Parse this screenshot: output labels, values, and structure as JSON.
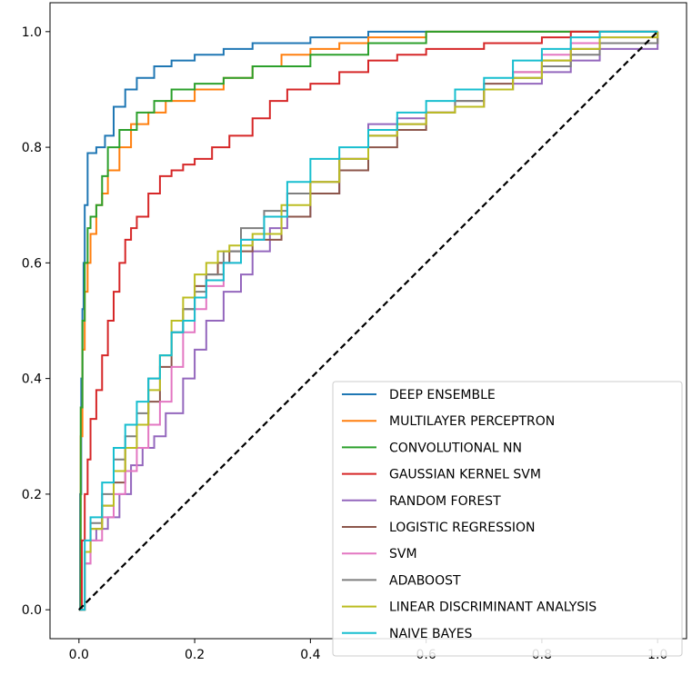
{
  "chart_data": {
    "type": "line",
    "title": "",
    "xlabel": "",
    "ylabel": "",
    "xlim": [
      -0.05,
      1.05
    ],
    "ylim": [
      -0.05,
      1.05
    ],
    "x_ticks": [
      "0.0",
      "0.2",
      "0.4",
      "0.6",
      "0.8",
      "1.0"
    ],
    "y_ticks": [
      "0.0",
      "0.2",
      "0.4",
      "0.6",
      "0.8",
      "1.0"
    ],
    "grid": false,
    "legend_position": "lower-right",
    "diagonal": {
      "x": [
        0,
        1
      ],
      "y": [
        0,
        1
      ],
      "color": "#000000",
      "style": "dashed"
    },
    "series": [
      {
        "name": "DEEP ENSEMBLE",
        "color": "#1f77b4",
        "x": [
          0,
          0.002,
          0.004,
          0.006,
          0.008,
          0.01,
          0.015,
          0.02,
          0.03,
          0.045,
          0.06,
          0.08,
          0.1,
          0.13,
          0.16,
          0.2,
          0.25,
          0.3,
          0.4,
          0.5,
          0.6,
          0.8,
          1.0
        ],
        "y": [
          0,
          0.2,
          0.4,
          0.52,
          0.6,
          0.7,
          0.79,
          0.79,
          0.8,
          0.82,
          0.87,
          0.9,
          0.92,
          0.94,
          0.95,
          0.96,
          0.97,
          0.98,
          0.99,
          1.0,
          1.0,
          1.0,
          1.0
        ]
      },
      {
        "name": "MULTILAYER PERCEPTRON",
        "color": "#ff7f0e",
        "x": [
          0,
          0.003,
          0.006,
          0.01,
          0.015,
          0.02,
          0.03,
          0.04,
          0.05,
          0.07,
          0.09,
          0.12,
          0.15,
          0.2,
          0.25,
          0.3,
          0.35,
          0.4,
          0.45,
          0.5,
          0.6,
          0.7,
          1.0
        ],
        "y": [
          0,
          0.3,
          0.45,
          0.55,
          0.6,
          0.65,
          0.7,
          0.72,
          0.76,
          0.8,
          0.84,
          0.86,
          0.88,
          0.9,
          0.92,
          0.94,
          0.96,
          0.97,
          0.98,
          0.99,
          1.0,
          1.0,
          1.0
        ]
      },
      {
        "name": "CONVOLUTIONAL NN",
        "color": "#2ca02c",
        "x": [
          0,
          0.003,
          0.006,
          0.01,
          0.015,
          0.02,
          0.03,
          0.04,
          0.05,
          0.07,
          0.1,
          0.13,
          0.16,
          0.2,
          0.25,
          0.3,
          0.4,
          0.5,
          0.6,
          0.7,
          0.8,
          1.0
        ],
        "y": [
          0,
          0.35,
          0.5,
          0.6,
          0.66,
          0.68,
          0.7,
          0.75,
          0.8,
          0.83,
          0.86,
          0.88,
          0.9,
          0.91,
          0.92,
          0.94,
          0.96,
          0.98,
          1.0,
          1.0,
          1.0,
          1.0
        ]
      },
      {
        "name": "GAUSSIAN KERNEL SVM",
        "color": "#d62728",
        "x": [
          0,
          0.005,
          0.01,
          0.015,
          0.02,
          0.03,
          0.04,
          0.05,
          0.06,
          0.07,
          0.08,
          0.09,
          0.1,
          0.12,
          0.14,
          0.16,
          0.18,
          0.2,
          0.23,
          0.26,
          0.3,
          0.33,
          0.36,
          0.4,
          0.45,
          0.5,
          0.55,
          0.6,
          0.7,
          0.8,
          0.85,
          0.9,
          1.0
        ],
        "y": [
          0,
          0.12,
          0.2,
          0.26,
          0.33,
          0.38,
          0.44,
          0.5,
          0.55,
          0.6,
          0.64,
          0.66,
          0.68,
          0.72,
          0.75,
          0.76,
          0.77,
          0.78,
          0.8,
          0.82,
          0.85,
          0.88,
          0.9,
          0.91,
          0.93,
          0.95,
          0.96,
          0.97,
          0.98,
          0.99,
          1.0,
          1.0,
          1.0
        ]
      },
      {
        "name": "RANDOM FOREST",
        "color": "#9467bd",
        "x": [
          0,
          0.01,
          0.02,
          0.03,
          0.05,
          0.07,
          0.09,
          0.11,
          0.13,
          0.15,
          0.18,
          0.2,
          0.22,
          0.25,
          0.28,
          0.3,
          0.33,
          0.36,
          0.4,
          0.45,
          0.5,
          0.55,
          0.6,
          0.65,
          0.7,
          0.75,
          0.8,
          0.85,
          0.9,
          1.0
        ],
        "y": [
          0,
          0.08,
          0.12,
          0.14,
          0.16,
          0.2,
          0.25,
          0.28,
          0.3,
          0.34,
          0.4,
          0.45,
          0.5,
          0.55,
          0.58,
          0.62,
          0.66,
          0.68,
          0.72,
          0.78,
          0.84,
          0.85,
          0.86,
          0.87,
          0.9,
          0.91,
          0.93,
          0.95,
          0.97,
          1.0
        ]
      },
      {
        "name": "LOGISTIC REGRESSION",
        "color": "#8c564b",
        "x": [
          0,
          0.01,
          0.02,
          0.04,
          0.06,
          0.08,
          0.1,
          0.12,
          0.14,
          0.16,
          0.18,
          0.2,
          0.22,
          0.24,
          0.26,
          0.3,
          0.35,
          0.4,
          0.45,
          0.5,
          0.55,
          0.6,
          0.65,
          0.7,
          0.75,
          0.8,
          0.85,
          0.9,
          1.0
        ],
        "y": [
          0,
          0.1,
          0.14,
          0.18,
          0.22,
          0.28,
          0.32,
          0.36,
          0.42,
          0.48,
          0.52,
          0.56,
          0.58,
          0.6,
          0.62,
          0.64,
          0.68,
          0.72,
          0.76,
          0.8,
          0.83,
          0.86,
          0.88,
          0.91,
          0.93,
          0.95,
          0.97,
          0.98,
          1.0
        ]
      },
      {
        "name": "SVM",
        "color": "#e377c2",
        "x": [
          0,
          0.01,
          0.02,
          0.04,
          0.06,
          0.08,
          0.1,
          0.12,
          0.14,
          0.16,
          0.18,
          0.2,
          0.22,
          0.25,
          0.28,
          0.32,
          0.36,
          0.4,
          0.45,
          0.5,
          0.55,
          0.6,
          0.65,
          0.7,
          0.75,
          0.8,
          0.85,
          0.9,
          1.0
        ],
        "y": [
          0,
          0.08,
          0.12,
          0.16,
          0.2,
          0.24,
          0.28,
          0.32,
          0.36,
          0.42,
          0.48,
          0.52,
          0.56,
          0.6,
          0.64,
          0.68,
          0.72,
          0.74,
          0.78,
          0.82,
          0.84,
          0.86,
          0.87,
          0.9,
          0.93,
          0.96,
          0.98,
          0.99,
          1.0
        ]
      },
      {
        "name": "ADABOOST",
        "color": "#7f7f7f",
        "x": [
          0,
          0.01,
          0.02,
          0.04,
          0.06,
          0.08,
          0.1,
          0.12,
          0.14,
          0.16,
          0.18,
          0.2,
          0.22,
          0.25,
          0.28,
          0.32,
          0.36,
          0.4,
          0.45,
          0.5,
          0.55,
          0.6,
          0.65,
          0.7,
          0.75,
          0.8,
          0.85,
          0.9,
          1.0
        ],
        "y": [
          0,
          0.1,
          0.15,
          0.2,
          0.26,
          0.3,
          0.34,
          0.4,
          0.44,
          0.48,
          0.52,
          0.55,
          0.58,
          0.62,
          0.66,
          0.69,
          0.72,
          0.74,
          0.78,
          0.82,
          0.84,
          0.86,
          0.88,
          0.9,
          0.92,
          0.94,
          0.96,
          0.98,
          1.0
        ]
      },
      {
        "name": "LINEAR DISCRIMINANT ANALYSIS",
        "color": "#bcbd22",
        "x": [
          0,
          0.01,
          0.02,
          0.04,
          0.06,
          0.08,
          0.1,
          0.12,
          0.14,
          0.16,
          0.18,
          0.2,
          0.22,
          0.24,
          0.26,
          0.3,
          0.35,
          0.4,
          0.45,
          0.5,
          0.55,
          0.6,
          0.65,
          0.7,
          0.75,
          0.8,
          0.85,
          0.9,
          1.0
        ],
        "y": [
          0,
          0.1,
          0.14,
          0.18,
          0.24,
          0.28,
          0.32,
          0.38,
          0.44,
          0.5,
          0.54,
          0.58,
          0.6,
          0.62,
          0.63,
          0.65,
          0.7,
          0.74,
          0.78,
          0.82,
          0.84,
          0.86,
          0.87,
          0.9,
          0.92,
          0.95,
          0.97,
          0.99,
          1.0
        ]
      },
      {
        "name": "NAIVE BAYES",
        "color": "#17becf",
        "x": [
          0,
          0.01,
          0.02,
          0.04,
          0.06,
          0.08,
          0.1,
          0.12,
          0.14,
          0.16,
          0.18,
          0.2,
          0.22,
          0.25,
          0.28,
          0.32,
          0.36,
          0.4,
          0.45,
          0.5,
          0.55,
          0.6,
          0.65,
          0.7,
          0.75,
          0.8,
          0.85,
          0.9,
          1.0
        ],
        "y": [
          0,
          0.12,
          0.16,
          0.22,
          0.28,
          0.32,
          0.36,
          0.4,
          0.44,
          0.48,
          0.5,
          0.54,
          0.57,
          0.6,
          0.64,
          0.68,
          0.74,
          0.78,
          0.8,
          0.83,
          0.86,
          0.88,
          0.9,
          0.92,
          0.95,
          0.97,
          0.99,
          1.0,
          1.0
        ]
      }
    ]
  }
}
